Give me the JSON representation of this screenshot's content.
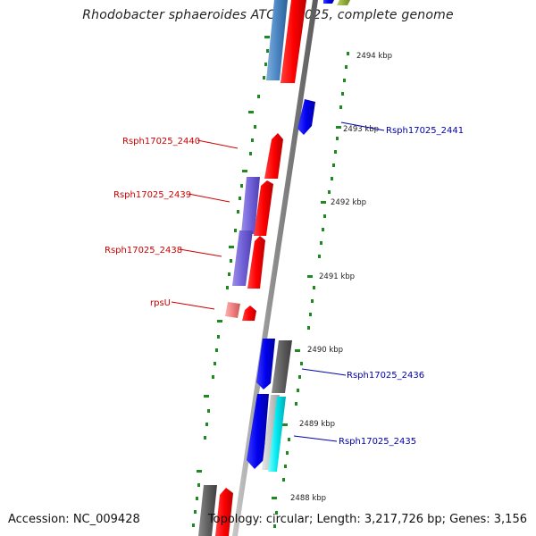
{
  "title": "Rhodobacter sphaeroides ATCC 17025, complete genome",
  "accession": "Accession: NC_009428",
  "summary": "Topology: circular; Length: 3,217,726 bp; Genes: 3,156",
  "ticks": [
    "2494 kbp",
    "2493 kbp",
    "2492 kbp",
    "2491 kbp",
    "2490 kbp",
    "2489 kbp",
    "2488 kbp"
  ],
  "gene_labels": {
    "rsph2440": "Rsph17025_2440",
    "rsph2439": "Rsph17025_2439",
    "rsph2438": "Rsph17025_2438",
    "rpsU": "rpsU",
    "rsph2441": "Rsph17025_2441",
    "rsph2436": "Rsph17025_2436",
    "rsph2435": "Rsph17025_2435"
  },
  "colors": {
    "reverse_strand_label": "#cc0000",
    "forward_strand_label": "#0000aa",
    "backbone": "#8c8c8c",
    "tick_dash": "#1f8a1f"
  }
}
